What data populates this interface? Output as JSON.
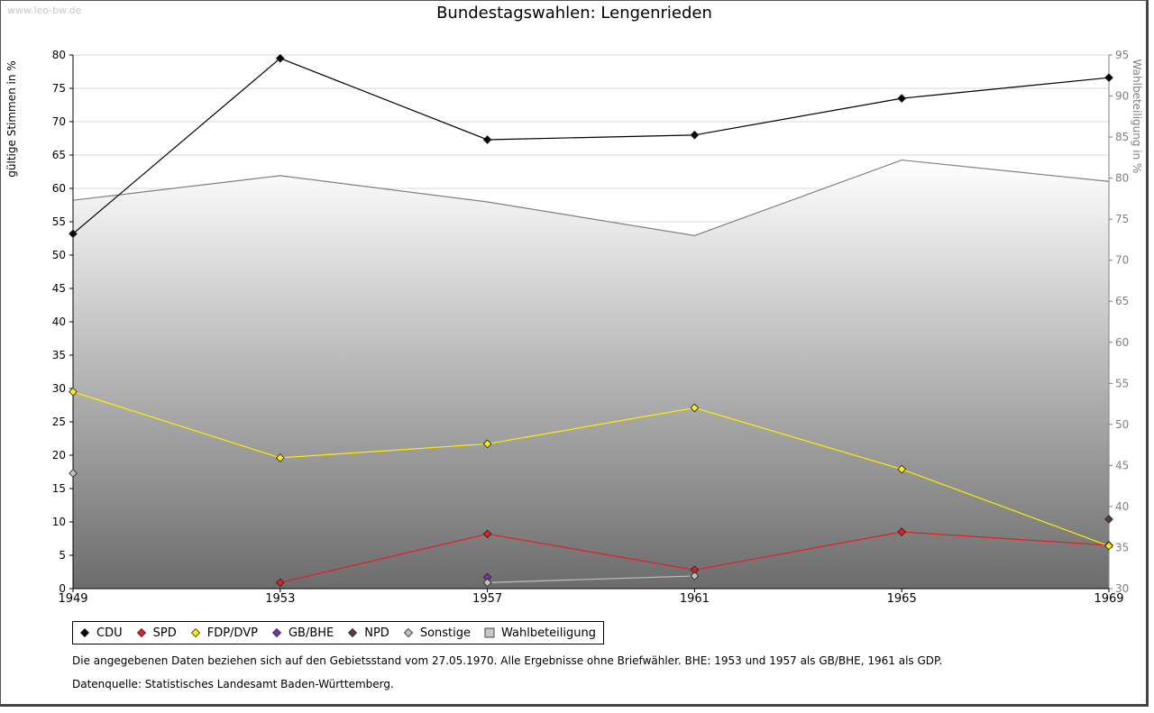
{
  "watermark": "www.leo-bw.de",
  "chart_data": {
    "type": "line",
    "title": "Bundestagswahlen: Lengenrieden",
    "ylabel_left": "gültige Stimmen in %",
    "ylabel_right": "Wahlbeteiligung in %",
    "x": [
      "1949",
      "1953",
      "1957",
      "1961",
      "1965",
      "1969"
    ],
    "ylim_left": [
      0,
      80
    ],
    "yticks_left": [
      0,
      5,
      10,
      15,
      20,
      25,
      30,
      35,
      40,
      45,
      50,
      55,
      60,
      65,
      70,
      75,
      80
    ],
    "ylim_right": [
      30,
      95
    ],
    "yticks_right": [
      30,
      35,
      40,
      45,
      50,
      55,
      60,
      65,
      70,
      75,
      80,
      85,
      90,
      95
    ],
    "grid": true,
    "legend_position": "bottom",
    "series": [
      {
        "name": "CDU",
        "color": "#000000",
        "values": [
          53.2,
          79.5,
          67.3,
          68.0,
          73.5,
          76.6
        ]
      },
      {
        "name": "SPD",
        "color": "#e31e24",
        "values": [
          null,
          0.9,
          8.2,
          2.8,
          8.5,
          6.5
        ]
      },
      {
        "name": "FDP/DVP",
        "color": "#ffee00",
        "values": [
          29.5,
          19.6,
          21.7,
          27.1,
          17.9,
          6.4
        ]
      },
      {
        "name": "GB/BHE",
        "color": "#7b2fbe",
        "values": [
          null,
          null,
          1.7,
          null,
          null,
          null
        ]
      },
      {
        "name": "NPD",
        "color": "#5a4038",
        "values": [
          null,
          null,
          null,
          null,
          null,
          10.4
        ]
      },
      {
        "name": "Sonstige",
        "color": "#c0c0c0",
        "values": [
          17.3,
          null,
          0.9,
          1.9,
          null,
          null
        ]
      }
    ],
    "wahlbeteiligung": {
      "name": "Wahlbeteiligung",
      "color": "#808080",
      "values": [
        77.3,
        80.3,
        77.1,
        73.0,
        82.2,
        79.6
      ]
    }
  },
  "notes": {
    "line1": "Die angegebenen Daten beziehen sich auf den Gebietsstand vom 27.05.1970. Alle Ergebnisse ohne Briefwähler. BHE: 1953 und 1957 als GB/BHE, 1961 als GDP.",
    "line2": "Datenquelle: Statistisches Landesamt Baden-Württemberg."
  }
}
